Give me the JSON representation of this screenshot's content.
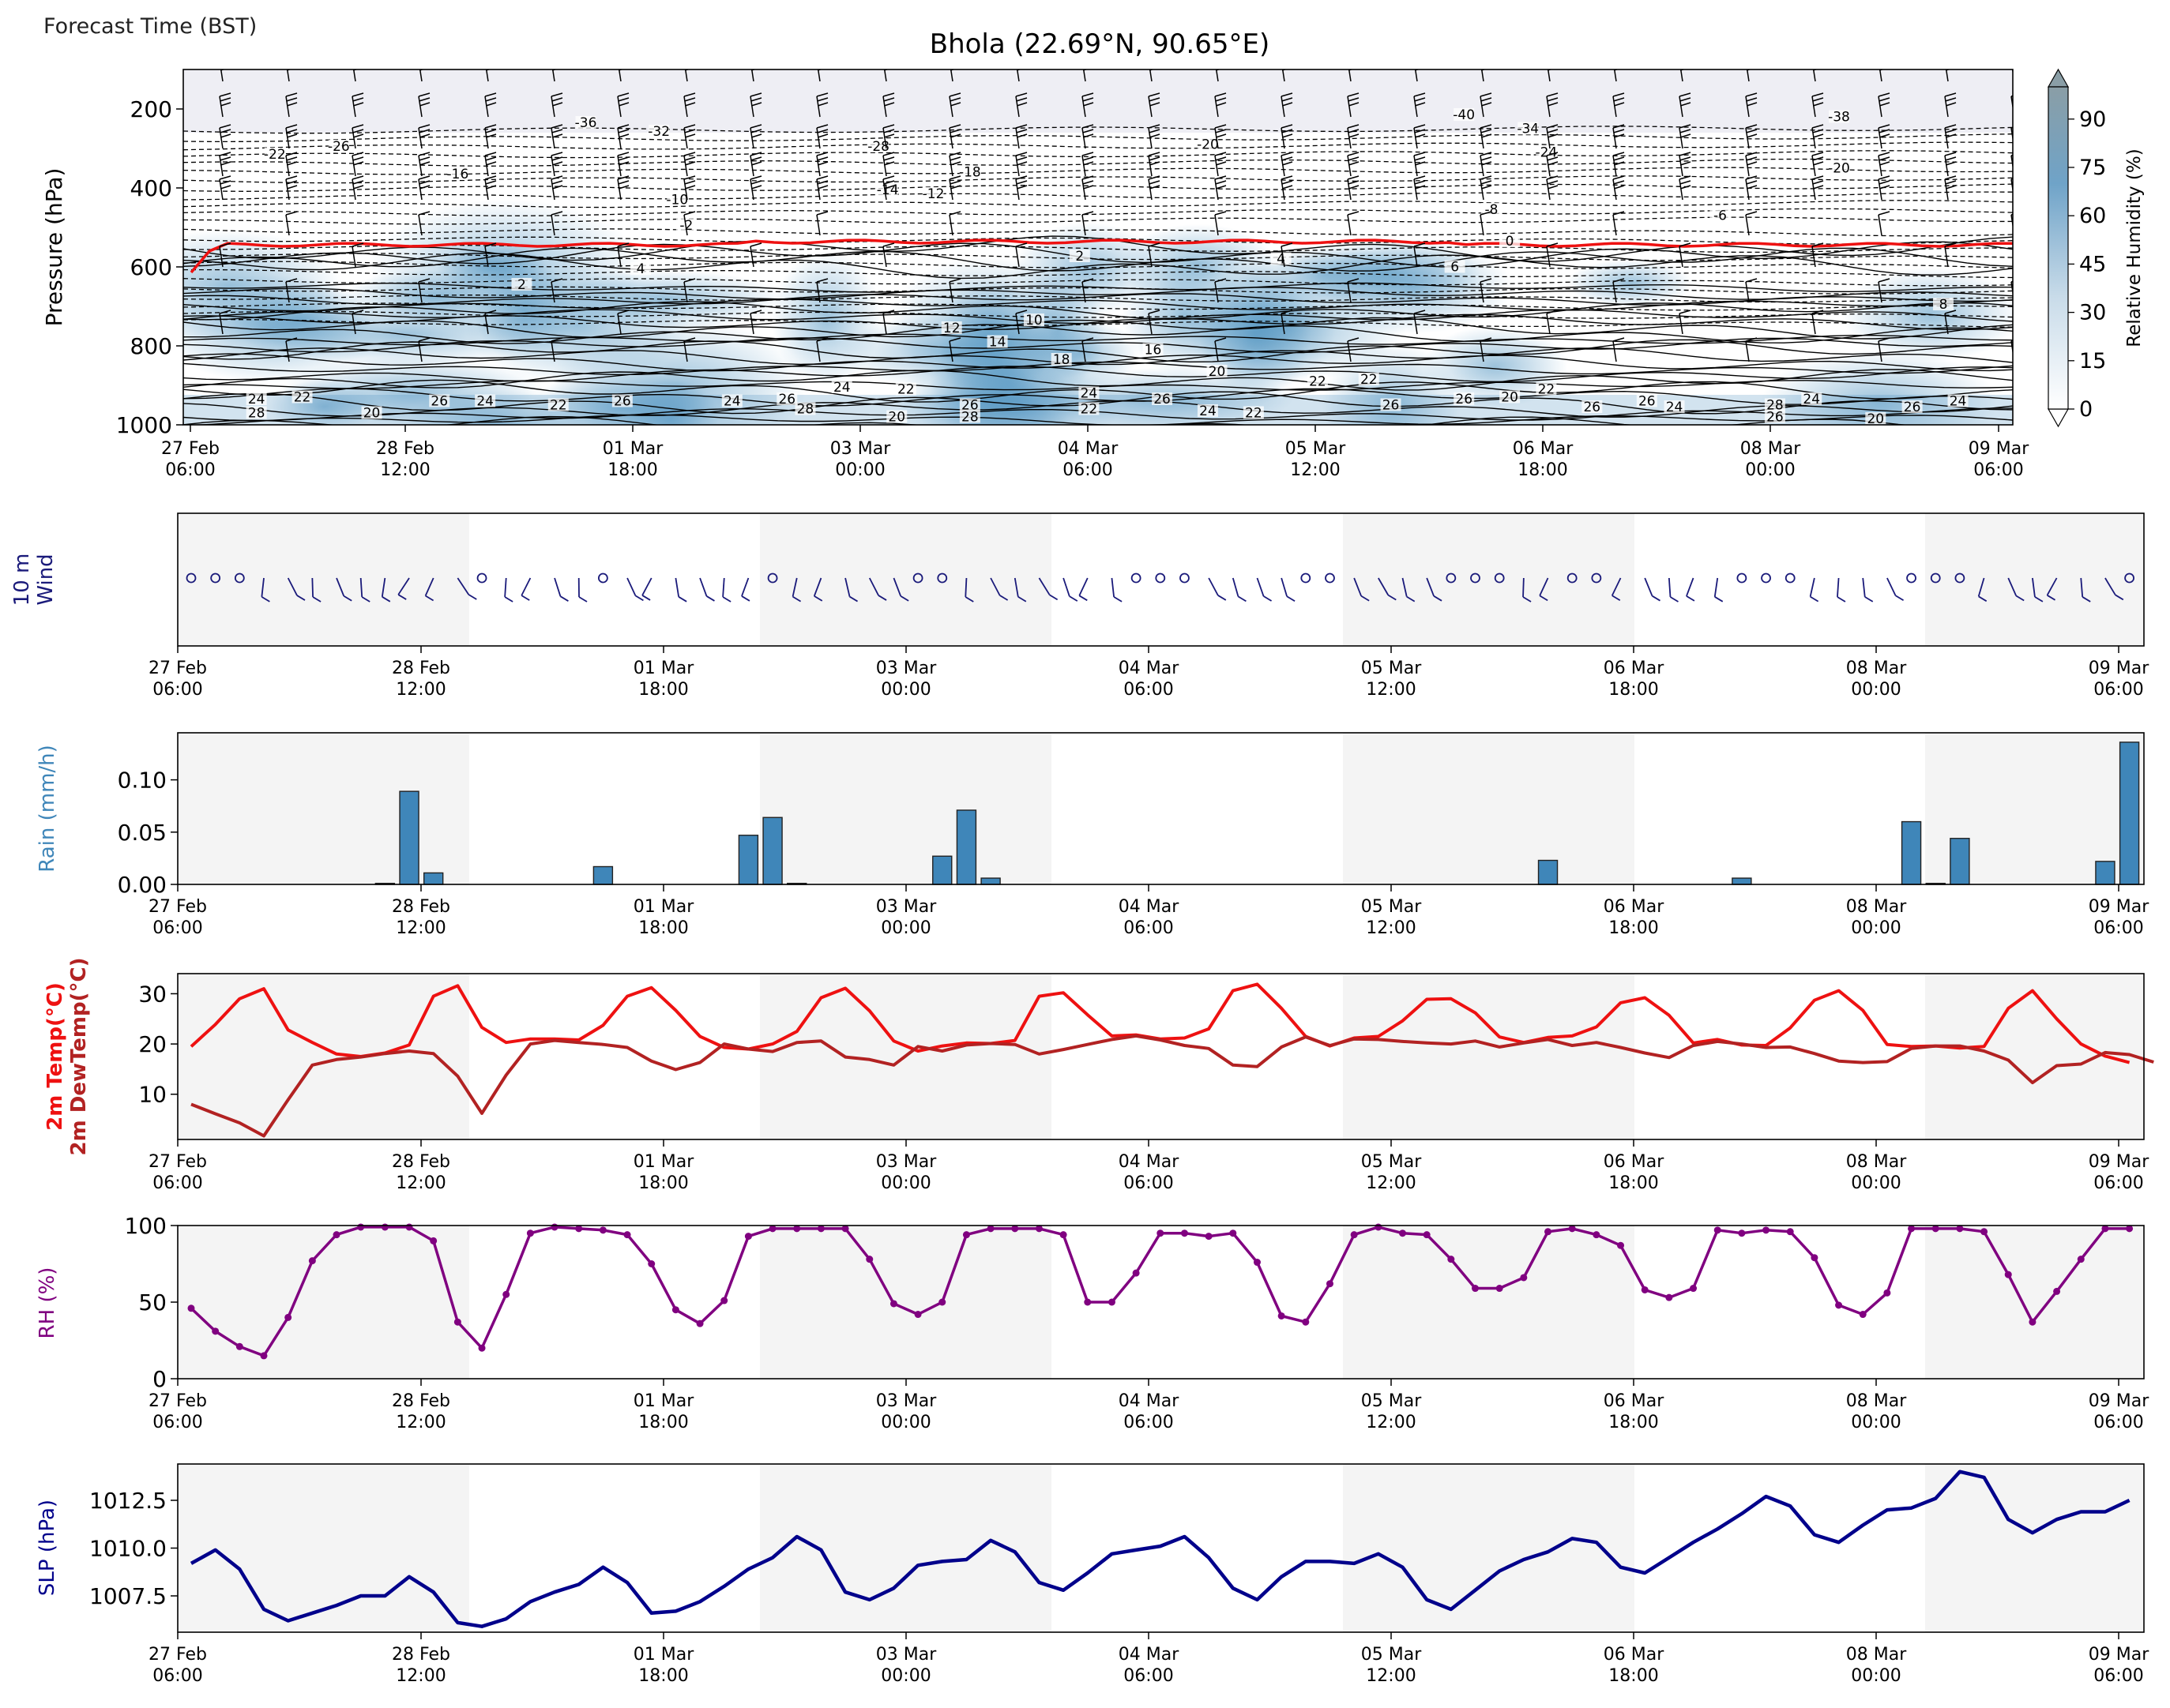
{
  "header": {
    "corner_label": "Forecast Time (BST)"
  },
  "time_axis": {
    "tick_labels": [
      [
        "27 Feb",
        "06:00"
      ],
      [
        "28 Feb",
        "12:00"
      ],
      [
        "01 Mar",
        "18:00"
      ],
      [
        "03 Mar",
        "00:00"
      ],
      [
        "04 Mar",
        "06:00"
      ],
      [
        "05 Mar",
        "12:00"
      ],
      [
        "06 Mar",
        "18:00"
      ],
      [
        "08 Mar",
        "00:00"
      ],
      [
        "09 Mar",
        "06:00"
      ]
    ]
  },
  "colors": {
    "temp": "#ee1111",
    "dewtemp": "#b22222",
    "rh": "#800080",
    "slp": "#00008b",
    "rain": "#3f86b9",
    "wind": "#1a1a7a",
    "freezing_line": "#ee1111",
    "humidity_fill": "#4a90be"
  },
  "chart_data": [
    {
      "id": "upper_air",
      "type": "heatmap",
      "title": "Bhola (22.69°N, 90.65°E)",
      "ylabel": "Pressure (hPa)",
      "y_ticks": [
        200,
        400,
        600,
        800,
        1000
      ],
      "ylim": [
        1000,
        100
      ],
      "y_scale": "inverted",
      "colorbar": {
        "label": "Relative Humidity (%)",
        "ticks": [
          0,
          15,
          30,
          45,
          60,
          75,
          90
        ],
        "range": [
          0,
          100
        ]
      },
      "contour_labels": [
        {
          "text": "-36",
          "t": 0.22,
          "p": 240
        },
        {
          "text": "-32",
          "t": 0.26,
          "p": 262
        },
        {
          "text": "-26",
          "t": 0.085,
          "p": 300
        },
        {
          "text": "-22",
          "t": 0.05,
          "p": 320
        },
        {
          "text": "-16",
          "t": 0.15,
          "p": 370
        },
        {
          "text": "-10",
          "t": 0.27,
          "p": 435
        },
        {
          "text": "-2",
          "t": 0.275,
          "p": 500
        },
        {
          "text": "-28",
          "t": 0.38,
          "p": 300
        },
        {
          "text": "-18",
          "t": 0.43,
          "p": 365
        },
        {
          "text": "-14",
          "t": 0.385,
          "p": 410
        },
        {
          "text": "-12",
          "t": 0.41,
          "p": 420
        },
        {
          "text": "-20",
          "t": 0.56,
          "p": 295
        },
        {
          "text": "-40",
          "t": 0.7,
          "p": 220
        },
        {
          "text": "-34",
          "t": 0.735,
          "p": 255
        },
        {
          "text": "-24",
          "t": 0.745,
          "p": 315
        },
        {
          "text": "-8",
          "t": 0.715,
          "p": 460
        },
        {
          "text": "-6",
          "t": 0.84,
          "p": 475
        },
        {
          "text": "0",
          "t": 0.725,
          "p": 540
        },
        {
          "text": "-38",
          "t": 0.905,
          "p": 225
        },
        {
          "text": "-20",
          "t": 0.905,
          "p": 355
        },
        {
          "text": "2",
          "t": 0.49,
          "p": 578
        },
        {
          "text": "4",
          "t": 0.6,
          "p": 585
        },
        {
          "text": "6",
          "t": 0.695,
          "p": 605
        },
        {
          "text": "2",
          "t": 0.185,
          "p": 650
        },
        {
          "text": "4",
          "t": 0.25,
          "p": 610
        },
        {
          "text": "10",
          "t": 0.465,
          "p": 740
        },
        {
          "text": "12",
          "t": 0.42,
          "p": 760
        },
        {
          "text": "14",
          "t": 0.445,
          "p": 795
        },
        {
          "text": "18",
          "t": 0.48,
          "p": 840
        },
        {
          "text": "16",
          "t": 0.53,
          "p": 815
        },
        {
          "text": "20",
          "t": 0.565,
          "p": 870
        },
        {
          "text": "22",
          "t": 0.62,
          "p": 895
        },
        {
          "text": "8",
          "t": 0.962,
          "p": 700
        },
        {
          "text": "24",
          "t": 0.04,
          "p": 940
        },
        {
          "text": "22",
          "t": 0.065,
          "p": 935
        },
        {
          "text": "26",
          "t": 0.14,
          "p": 945
        },
        {
          "text": "24",
          "t": 0.165,
          "p": 945
        },
        {
          "text": "28",
          "t": 0.04,
          "p": 975
        },
        {
          "text": "26",
          "t": 0.24,
          "p": 945
        },
        {
          "text": "24",
          "t": 0.3,
          "p": 945
        },
        {
          "text": "26",
          "t": 0.33,
          "p": 940
        },
        {
          "text": "28",
          "t": 0.34,
          "p": 965
        },
        {
          "text": "24",
          "t": 0.36,
          "p": 910
        },
        {
          "text": "22",
          "t": 0.395,
          "p": 915
        },
        {
          "text": "20",
          "t": 0.39,
          "p": 985
        },
        {
          "text": "26",
          "t": 0.43,
          "p": 955
        },
        {
          "text": "28",
          "t": 0.43,
          "p": 985
        },
        {
          "text": "24",
          "t": 0.495,
          "p": 925
        },
        {
          "text": "22",
          "t": 0.495,
          "p": 965
        },
        {
          "text": "26",
          "t": 0.535,
          "p": 940
        },
        {
          "text": "24",
          "t": 0.56,
          "p": 970
        },
        {
          "text": "22",
          "t": 0.585,
          "p": 975
        },
        {
          "text": "22",
          "t": 0.648,
          "p": 890
        },
        {
          "text": "26",
          "t": 0.66,
          "p": 955
        },
        {
          "text": "26",
          "t": 0.7,
          "p": 940
        },
        {
          "text": "20",
          "t": 0.725,
          "p": 935
        },
        {
          "text": "22",
          "t": 0.745,
          "p": 915
        },
        {
          "text": "26",
          "t": 0.77,
          "p": 960
        },
        {
          "text": "26",
          "t": 0.8,
          "p": 945
        },
        {
          "text": "24",
          "t": 0.815,
          "p": 960
        },
        {
          "text": "28",
          "t": 0.87,
          "p": 955
        },
        {
          "text": "26",
          "t": 0.87,
          "p": 985
        },
        {
          "text": "24",
          "t": 0.89,
          "p": 940
        },
        {
          "text": "20",
          "t": 0.925,
          "p": 990
        },
        {
          "text": "26",
          "t": 0.945,
          "p": 960
        },
        {
          "text": "24",
          "t": 0.97,
          "p": 945
        },
        {
          "text": "20",
          "t": 0.103,
          "p": 975
        },
        {
          "text": "22",
          "t": 0.205,
          "p": 955
        }
      ]
    },
    {
      "id": "wind10m",
      "type": "scatter",
      "ylabel_lines": [
        "10 m",
        "Wind"
      ],
      "n_steps": 81,
      "calm_indices": [
        0,
        1,
        2,
        12,
        17,
        24,
        30,
        31,
        39,
        40,
        41,
        46,
        47,
        52,
        53,
        54,
        57,
        58,
        64,
        65,
        66,
        71,
        72,
        73,
        80
      ]
    },
    {
      "id": "rain",
      "type": "bar",
      "ylabel": "Rain (mm/h)",
      "y_ticks": [
        0.0,
        0.05,
        0.1
      ],
      "y_tick_labels": [
        "0.00",
        "0.05",
        "0.10"
      ],
      "ylim": [
        0,
        0.145
      ],
      "bars": [
        {
          "i": 8,
          "v": 0.001
        },
        {
          "i": 9,
          "v": 0.089
        },
        {
          "i": 10,
          "v": 0.011
        },
        {
          "i": 17,
          "v": 0.017
        },
        {
          "i": 23,
          "v": 0.047
        },
        {
          "i": 24,
          "v": 0.064
        },
        {
          "i": 25,
          "v": 0.001
        },
        {
          "i": 31,
          "v": 0.027
        },
        {
          "i": 32,
          "v": 0.071
        },
        {
          "i": 33,
          "v": 0.006
        },
        {
          "i": 56,
          "v": 0.023
        },
        {
          "i": 64,
          "v": 0.006
        },
        {
          "i": 71,
          "v": 0.06
        },
        {
          "i": 72,
          "v": 0.001
        },
        {
          "i": 73,
          "v": 0.044
        },
        {
          "i": 79,
          "v": 0.022
        },
        {
          "i": 80,
          "v": 0.136
        }
      ]
    },
    {
      "id": "temperature",
      "type": "line",
      "ylabel_lines": [
        "2m Temp(°C)",
        "2m DewTemp(°C)"
      ],
      "y_ticks": [
        10,
        20,
        30
      ],
      "ylim": [
        1,
        34
      ],
      "series": [
        {
          "key": "temp",
          "values": [
            19.5,
            23.9,
            29.0,
            31.0,
            22.8,
            20.3,
            18.0,
            17.5,
            18.2,
            19.8,
            29.5,
            31.6,
            23.3,
            20.3,
            21.0,
            21.0,
            20.8,
            23.7,
            29.5,
            31.2,
            26.7,
            21.5,
            19.3,
            19.0,
            20.0,
            22.5,
            29.2,
            31.1,
            26.6,
            20.6,
            18.6,
            19.6,
            20.2,
            20.1,
            20.7,
            29.5,
            30.2,
            25.8,
            21.6,
            21.8,
            21.0,
            21.2,
            23.0,
            30.6,
            31.9,
            27.1,
            21.5,
            19.6,
            21.2,
            21.5,
            24.6,
            28.9,
            29.0,
            26.2,
            21.4,
            20.3,
            21.3,
            21.6,
            23.4,
            28.2,
            29.2,
            25.7,
            20.2,
            20.9,
            19.8,
            19.7,
            23.2,
            28.7,
            30.6,
            26.7,
            19.9,
            19.5,
            19.6,
            19.2,
            19.5,
            27.1,
            30.6,
            25.0,
            20.0,
            17.6,
            16.3
          ]
        },
        {
          "key": "dewtemp",
          "values": [
            8.0,
            6.1,
            4.3,
            1.7,
            8.9,
            15.8,
            16.9,
            17.4,
            18.1,
            18.6,
            18.1,
            13.6,
            6.2,
            13.8,
            20.0,
            20.7,
            20.3,
            19.9,
            19.3,
            16.6,
            14.9,
            16.3,
            20.0,
            19.0,
            18.5,
            20.3,
            20.6,
            17.4,
            16.9,
            15.8,
            19.5,
            18.6,
            19.8,
            20.1,
            19.9,
            18.0,
            18.9,
            19.9,
            20.9,
            21.6,
            20.8,
            19.7,
            19.1,
            15.8,
            15.5,
            19.4,
            21.4,
            19.7,
            21.0,
            20.9,
            20.5,
            20.2,
            20.0,
            20.6,
            19.4,
            20.2,
            20.9,
            19.7,
            20.3,
            19.3,
            18.2,
            17.3,
            19.7,
            20.5,
            20.0,
            19.3,
            19.4,
            18.1,
            16.6,
            16.3,
            16.5,
            19.1,
            19.6,
            19.6,
            18.6,
            16.8,
            12.3,
            15.7,
            16.0,
            18.3,
            17.9,
            16.4
          ]
        }
      ]
    },
    {
      "id": "rh",
      "type": "line",
      "ylabel": "RH (%)",
      "y_ticks": [
        0,
        50,
        100
      ],
      "ylim": [
        0,
        100
      ],
      "series": [
        {
          "key": "rh",
          "values": [
            46,
            31,
            21,
            15,
            40,
            77,
            94,
            99,
            99,
            99,
            90,
            37,
            20,
            55,
            95,
            99,
            98,
            97,
            94,
            75,
            45,
            36,
            51,
            93,
            98,
            98,
            98,
            98,
            78,
            49,
            42,
            50,
            94,
            98,
            98,
            98,
            94,
            50,
            50,
            69,
            95,
            95,
            93,
            95,
            76,
            41,
            37,
            62,
            94,
            99,
            95,
            94,
            78,
            59,
            59,
            66,
            96,
            98,
            94,
            87,
            58,
            53,
            59,
            97,
            95,
            97,
            96,
            79,
            48,
            42,
            56,
            98,
            98,
            98,
            96,
            68,
            37,
            57,
            78,
            98,
            98
          ]
        }
      ]
    },
    {
      "id": "slp",
      "type": "line",
      "ylabel": "SLP (hPa)",
      "y_ticks": [
        1007.5,
        1010.0,
        1012.5
      ],
      "y_tick_labels": [
        "1007.5",
        "1010.0",
        "1012.5"
      ],
      "ylim": [
        1005.6,
        1014.4
      ],
      "series": [
        {
          "key": "slp",
          "values": [
            1009.2,
            1009.9,
            1008.9,
            1006.8,
            1006.2,
            1006.6,
            1007.0,
            1007.5,
            1007.5,
            1008.5,
            1007.7,
            1006.1,
            1005.9,
            1006.3,
            1007.2,
            1007.7,
            1008.1,
            1009.0,
            1008.2,
            1006.6,
            1006.7,
            1007.2,
            1008.0,
            1008.9,
            1009.5,
            1010.6,
            1009.9,
            1007.7,
            1007.3,
            1007.9,
            1009.1,
            1009.3,
            1009.4,
            1010.4,
            1009.8,
            1008.2,
            1007.8,
            1008.7,
            1009.7,
            1009.9,
            1010.1,
            1010.6,
            1009.5,
            1007.9,
            1007.3,
            1008.5,
            1009.3,
            1009.3,
            1009.2,
            1009.7,
            1009.0,
            1007.3,
            1006.8,
            1007.8,
            1008.8,
            1009.4,
            1009.8,
            1010.5,
            1010.3,
            1009.0,
            1008.7,
            1009.5,
            1010.3,
            1011.0,
            1011.8,
            1012.7,
            1012.2,
            1010.7,
            1010.3,
            1011.2,
            1012.0,
            1012.1,
            1012.6,
            1014.0,
            1013.7,
            1011.5,
            1010.8,
            1011.5,
            1011.9,
            1011.9,
            1012.5
          ]
        }
      ]
    }
  ]
}
